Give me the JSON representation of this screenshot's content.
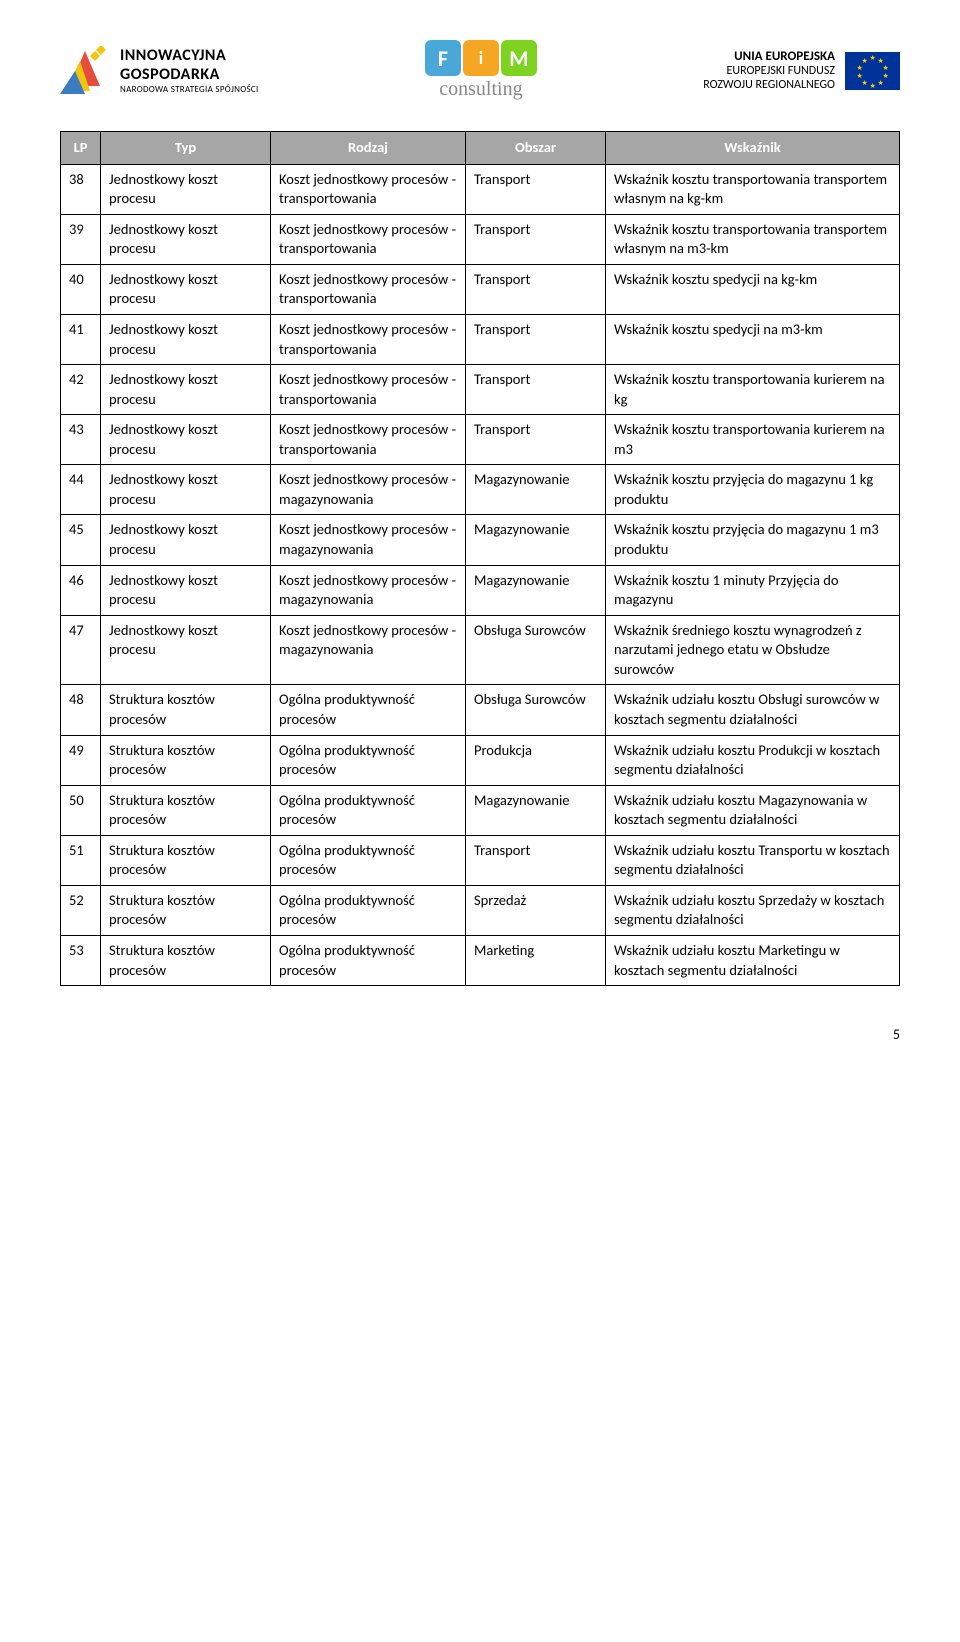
{
  "logos": {
    "left": {
      "line1": "INNOWACYJNA",
      "line2": "GOSPODARKA",
      "line3": "NARODOWA STRATEGIA SPÓJNOŚCI"
    },
    "center": {
      "f": "F",
      "i": "i",
      "m": "M",
      "sub": "consulting"
    },
    "right": {
      "line1": "UNIA EUROPEJSKA",
      "line2": "EUROPEJSKI FUNDUSZ",
      "line3": "ROZWOJU REGIONALNEGO"
    }
  },
  "table": {
    "headers": {
      "lp": "LP",
      "typ": "Typ",
      "rodzaj": "Rodzaj",
      "obszar": "Obszar",
      "wskaznik": "Wskaźnik"
    },
    "rows": [
      {
        "lp": "38",
        "typ": "Jednostkowy koszt procesu",
        "rodzaj": "Koszt jednostkowy procesów - transportowania",
        "obszar": "Transport",
        "wsk": "Wskaźnik kosztu transportowania transportem własnym na kg-km"
      },
      {
        "lp": "39",
        "typ": "Jednostkowy koszt procesu",
        "rodzaj": "Koszt jednostkowy procesów - transportowania",
        "obszar": "Transport",
        "wsk": "Wskaźnik kosztu transportowania transportem własnym na m3-km"
      },
      {
        "lp": "40",
        "typ": "Jednostkowy koszt procesu",
        "rodzaj": "Koszt jednostkowy procesów - transportowania",
        "obszar": "Transport",
        "wsk": "Wskaźnik kosztu spedycji na kg-km"
      },
      {
        "lp": "41",
        "typ": "Jednostkowy koszt procesu",
        "rodzaj": "Koszt jednostkowy procesów - transportowania",
        "obszar": "Transport",
        "wsk": "Wskaźnik kosztu spedycji na m3-km"
      },
      {
        "lp": "42",
        "typ": "Jednostkowy koszt procesu",
        "rodzaj": "Koszt jednostkowy procesów - transportowania",
        "obszar": "Transport",
        "wsk": "Wskaźnik kosztu transportowania kurierem na kg"
      },
      {
        "lp": "43",
        "typ": "Jednostkowy koszt procesu",
        "rodzaj": "Koszt jednostkowy procesów - transportowania",
        "obszar": "Transport",
        "wsk": "Wskaźnik kosztu transportowania kurierem na m3"
      },
      {
        "lp": "44",
        "typ": "Jednostkowy koszt procesu",
        "rodzaj": "Koszt jednostkowy procesów - magazynowania",
        "obszar": "Magazynowanie",
        "wsk": "Wskaźnik kosztu przyjęcia do magazynu 1 kg produktu"
      },
      {
        "lp": "45",
        "typ": "Jednostkowy koszt procesu",
        "rodzaj": "Koszt jednostkowy procesów - magazynowania",
        "obszar": "Magazynowanie",
        "wsk": "Wskaźnik kosztu przyjęcia do magazynu 1 m3 produktu"
      },
      {
        "lp": "46",
        "typ": "Jednostkowy koszt procesu",
        "rodzaj": "Koszt jednostkowy procesów - magazynowania",
        "obszar": "Magazynowanie",
        "wsk": "Wskaźnik kosztu 1 minuty Przyjęcia do magazynu"
      },
      {
        "lp": "47",
        "typ": "Jednostkowy koszt procesu",
        "rodzaj": "Koszt jednostkowy procesów - magazynowania",
        "obszar": "Obsługa Surowców",
        "wsk": "Wskaźnik średniego kosztu wynagrodzeń z narzutami jednego etatu w Obsłudze surowców"
      },
      {
        "lp": "48",
        "typ": "Struktura kosztów procesów",
        "rodzaj": "Ogólna produktywność procesów",
        "obszar": "Obsługa Surowców",
        "wsk": "Wskaźnik udziału kosztu Obsługi surowców w kosztach segmentu działalności"
      },
      {
        "lp": "49",
        "typ": "Struktura kosztów procesów",
        "rodzaj": "Ogólna produktywność procesów",
        "obszar": "Produkcja",
        "wsk": "Wskaźnik udziału kosztu Produkcji w kosztach segmentu działalności"
      },
      {
        "lp": "50",
        "typ": "Struktura kosztów procesów",
        "rodzaj": "Ogólna produktywność procesów",
        "obszar": "Magazynowanie",
        "wsk": "Wskaźnik udziału kosztu Magazynowania w kosztach segmentu działalności"
      },
      {
        "lp": "51",
        "typ": "Struktura kosztów procesów",
        "rodzaj": "Ogólna produktywność procesów",
        "obszar": "Transport",
        "wsk": "Wskaźnik udziału kosztu Transportu w kosztach segmentu działalności"
      },
      {
        "lp": "52",
        "typ": "Struktura kosztów procesów",
        "rodzaj": "Ogólna produktywność procesów",
        "obszar": "Sprzedaż",
        "wsk": "Wskaźnik udziału kosztu Sprzedaży w kosztach segmentu działalności"
      },
      {
        "lp": "53",
        "typ": "Struktura kosztów procesów",
        "rodzaj": "Ogólna produktywność procesów",
        "obszar": "Marketing",
        "wsk": "Wskaźnik udziału kosztu Marketingu w kosztach segmentu działalności"
      }
    ]
  },
  "pageNumber": "5"
}
